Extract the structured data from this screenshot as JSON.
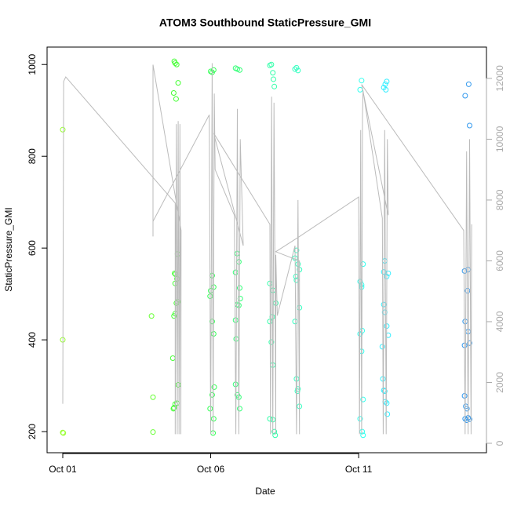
{
  "chart_data": {
    "type": "scatter",
    "title": "ATOM3 Southbound StaticPressure_GMI",
    "x_label": "Date",
    "y_label": "StaticPressure_GMI",
    "xlim": [
      -0.53,
      14.32
    ],
    "xticks": [
      {
        "value": 0,
        "label": "Oct 01"
      },
      {
        "value": 5,
        "label": "Oct 06"
      },
      {
        "value": 10,
        "label": "Oct 11"
      }
    ],
    "ylim": [
      154,
      1038
    ],
    "yticks": [
      200,
      400,
      600,
      800,
      1000
    ],
    "y2lim": [
      -310,
      13030
    ],
    "y2ticks": [
      0,
      2000,
      4000,
      6000,
      8000,
      10000,
      12000
    ],
    "series": [
      {
        "color": "#99ff33",
        "x": [
          0,
          0,
          0,
          0.02
        ],
        "values": [
          858,
          400,
          198,
          197
        ]
      },
      {
        "color": "#66ff33",
        "x": [
          3.0,
          3.05,
          3.05
        ],
        "values": [
          452,
          275,
          199
        ]
      },
      {
        "color": "#44ff33",
        "x": [
          3.77,
          3.8,
          3.85,
          3.9,
          3.75,
          3.83,
          3.88,
          3.78,
          3.81,
          3.86,
          3.8,
          3.88,
          3.84,
          3.8,
          3.76,
          3.72,
          3.9,
          3.86,
          3.8,
          3.76,
          3.74
        ],
        "values": [
          1007,
          1003,
          1000,
          960,
          938,
          925,
          587,
          545,
          543,
          533,
          523,
          483,
          480,
          457,
          452,
          360,
          302,
          262,
          260,
          252,
          250
        ]
      },
      {
        "color": "#33ff55",
        "x": [
          5.0,
          5.05,
          5.1,
          5.05,
          5.1,
          5.0,
          4.98,
          5.05,
          5.1,
          5.12,
          5.05,
          4.98,
          5.1,
          5.08
        ],
        "values": [
          985,
          983,
          988,
          540,
          515,
          507,
          495,
          440,
          413,
          297,
          280,
          250,
          228,
          197
        ]
      },
      {
        "color": "#33ff77",
        "x": [
          5.84,
          5.9,
          5.98,
          5.9,
          5.95,
          5.84,
          5.98,
          6.0,
          5.9,
          5.95,
          5.84,
          5.86,
          5.84,
          5.9,
          5.95,
          5.98
        ],
        "values": [
          992,
          990,
          988,
          588,
          570,
          547,
          513,
          490,
          477,
          475,
          443,
          402,
          303,
          280,
          275,
          250
        ]
      },
      {
        "color": "#33ffaa",
        "x": [
          7.0,
          7.05,
          7.1,
          7.12,
          7.15,
          7.0,
          7.1,
          7.2,
          7.08,
          7.0,
          7.05,
          7.1,
          7.0,
          7.1,
          7.15,
          7.18
        ],
        "values": [
          998,
          1000,
          982,
          968,
          952,
          523,
          508,
          480,
          450,
          440,
          395,
          345,
          228,
          226,
          200,
          192
        ]
      },
      {
        "color": "#33ffc0",
        "x": [
          7.85,
          7.9,
          7.95,
          7.9,
          7.85,
          7.95,
          8.0,
          7.9,
          7.88,
          8.0,
          7.85,
          7.9,
          7.95,
          7.93,
          8.0
        ],
        "values": [
          990,
          993,
          987,
          595,
          578,
          565,
          553,
          530,
          538,
          470,
          440,
          315,
          293,
          288,
          255
        ]
      },
      {
        "color": "#33ffee",
        "x": [
          10.1,
          10.05,
          10.15,
          10.05,
          10.1,
          10.1,
          10.12,
          10.05,
          10.1,
          10.15,
          10.05,
          10.12,
          10.15
        ],
        "values": [
          965,
          945,
          565,
          527,
          520,
          515,
          420,
          413,
          375,
          270,
          228,
          200,
          192
        ]
      },
      {
        "color": "#33eeff",
        "x": [
          10.95,
          10.9,
          10.85,
          10.92,
          10.88,
          10.85,
          10.95,
          11.0,
          10.85,
          10.88,
          10.95,
          11.0,
          10.8,
          10.82,
          10.85,
          10.88,
          10.9,
          10.95,
          10.97
        ],
        "values": [
          963,
          957,
          950,
          945,
          572,
          548,
          538,
          545,
          477,
          460,
          430,
          410,
          385,
          315,
          290,
          288,
          265,
          262,
          238
        ]
      },
      {
        "color": "#3399ee",
        "x": [
          13.72,
          13.6,
          13.75,
          13.7,
          13.58,
          13.68,
          13.6,
          13.7,
          13.75,
          13.58,
          13.58,
          13.62,
          13.66,
          13.6,
          13.7,
          13.75,
          13.65
        ],
        "values": [
          957,
          932,
          867,
          553,
          550,
          507,
          440,
          418,
          393,
          388,
          278,
          255,
          250,
          228,
          230,
          227,
          225
        ]
      },
      {
        "type": "line",
        "axis": "y2",
        "color": "#bbbbbb",
        "x": [
          0,
          0.03,
          0.1,
          3.8,
          3.8,
          3.84,
          3.87,
          3.9,
          3.93,
          3.96,
          3.99,
          4.0,
          3.05,
          3.05,
          3.05,
          4.95,
          5.0,
          5.05,
          5.08,
          5.12,
          5.15,
          5.8,
          5.85,
          5.9,
          5.95,
          6.0,
          6.1,
          5.1,
          7.0,
          7.02,
          7.06,
          7.1,
          7.14,
          7.2,
          7.2,
          7.25,
          7.85,
          7.9,
          7.95,
          8.0,
          8.0,
          7.2,
          8.0,
          10.0,
          10.03,
          10.07,
          10.1,
          10.13,
          10.15,
          10.8,
          10.83,
          10.88,
          10.93,
          10.97,
          11.0,
          10.1,
          13.55,
          13.6,
          13.65,
          13.7,
          13.75,
          13.8,
          13.82
        ],
        "values": [
          1300,
          11900,
          12050,
          7900,
          300,
          10500,
          300,
          10600,
          300,
          10500,
          300,
          7000,
          12450,
          6800,
          7300,
          10800,
          300,
          12500,
          300,
          11500,
          9000,
          7500,
          300,
          11000,
          300,
          10000,
          6500,
          10200,
          7200,
          300,
          11400,
          300,
          11200,
          300,
          6200,
          4200,
          6500,
          300,
          8000,
          300,
          6000,
          6300,
          6800,
          8100,
          300,
          10300,
          300,
          10800,
          11600,
          7400,
          300,
          10300,
          300,
          10000,
          7500,
          11800,
          7000,
          300,
          9600,
          300,
          10000,
          300,
          7200
        ]
      }
    ]
  }
}
